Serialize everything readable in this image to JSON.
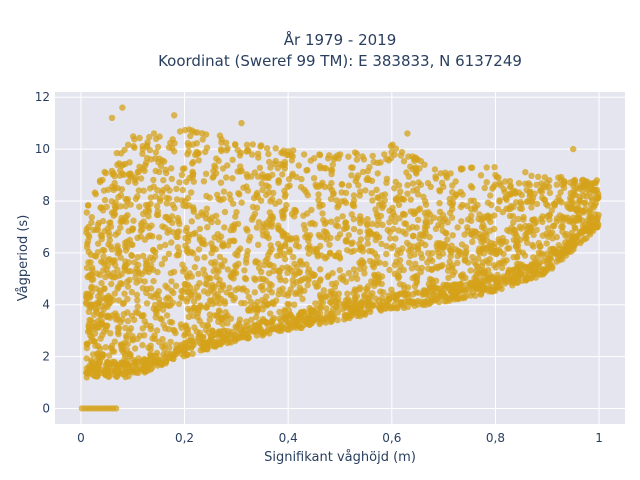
{
  "chart_data": {
    "type": "scatter",
    "title_line1": "År 1979 - 2019",
    "title_line2": "Koordinat (Sweref 99 TM): E 383833, N 6137249",
    "xlabel": "Signifikant våghöjd (m)",
    "ylabel": "Vågperiod (s)",
    "xlim": [
      -0.05,
      1.05
    ],
    "ylim": [
      -0.6,
      12.2
    ],
    "x_ticks": [
      0,
      0.2,
      0.4,
      0.6,
      0.8,
      1
    ],
    "x_tick_labels": [
      "0",
      "0,2",
      "0,4",
      "0,6",
      "0,8",
      "1"
    ],
    "y_ticks": [
      0,
      2,
      4,
      6,
      8,
      10,
      12
    ],
    "y_tick_labels": [
      "0",
      "2",
      "4",
      "6",
      "8",
      "10",
      "12"
    ],
    "grid": true,
    "marker_color": "#d4a21a",
    "background_color": "#e5e5f0",
    "cloud": {
      "x_range": [
        0.01,
        1.0
      ],
      "lower_envelope": [
        [
          0.02,
          1.2
        ],
        [
          0.1,
          1.2
        ],
        [
          0.2,
          2.0
        ],
        [
          0.3,
          2.6
        ],
        [
          0.4,
          3.0
        ],
        [
          0.5,
          3.4
        ],
        [
          0.6,
          3.8
        ],
        [
          0.7,
          4.1
        ],
        [
          0.8,
          4.5
        ],
        [
          0.9,
          5.2
        ],
        [
          1.0,
          7.0
        ]
      ],
      "upper_envelope": [
        [
          0.02,
          8.0
        ],
        [
          0.05,
          9.5
        ],
        [
          0.1,
          10.5
        ],
        [
          0.2,
          10.8
        ],
        [
          0.3,
          10.4
        ],
        [
          0.4,
          10.0
        ],
        [
          0.5,
          9.8
        ],
        [
          0.6,
          10.2
        ],
        [
          0.7,
          9.2
        ],
        [
          0.8,
          9.4
        ],
        [
          0.9,
          9.0
        ],
        [
          1.0,
          8.8
        ]
      ],
      "zero_period_points_x_range": [
        0.0,
        0.07
      ],
      "zero_period_y": 0
    },
    "outliers": [
      {
        "x": 0.08,
        "y": 11.6
      },
      {
        "x": 0.06,
        "y": 11.2
      },
      {
        "x": 0.18,
        "y": 11.3
      },
      {
        "x": 0.31,
        "y": 11.0
      },
      {
        "x": 0.63,
        "y": 10.6
      },
      {
        "x": 0.95,
        "y": 10.0
      }
    ]
  }
}
